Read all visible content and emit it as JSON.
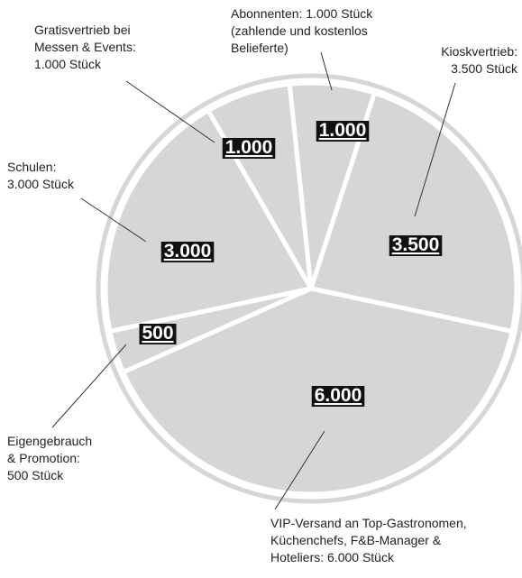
{
  "chart_data": {
    "type": "pie",
    "categories": [
      [
        "Abonnenten: 1.000 Stück",
        "(zahlende und kostenlos",
        "Belieferte)"
      ],
      [
        "Kioskvertrieb:",
        "3.500 Stück"
      ],
      [
        "VIP-Versand an Top-Gastronomen,",
        "Küchenchefs, F&B-Manager &",
        "Hoteliers: 6.000 Stück"
      ],
      [
        "Eigengebrauch",
        "& Promotion:",
        "500 Stück"
      ],
      [
        "Schulen:",
        "3.000 Stück"
      ],
      [
        "Gratisvertrieb bei",
        "Messen & Events:",
        "1.000 Stück"
      ]
    ],
    "values": [
      1000,
      3500,
      6000,
      500,
      3000,
      1000
    ],
    "value_labels": [
      "1.000",
      "3.500",
      "6.000",
      "500",
      "3.000",
      "1.000"
    ],
    "color": "#d6d6d6"
  }
}
